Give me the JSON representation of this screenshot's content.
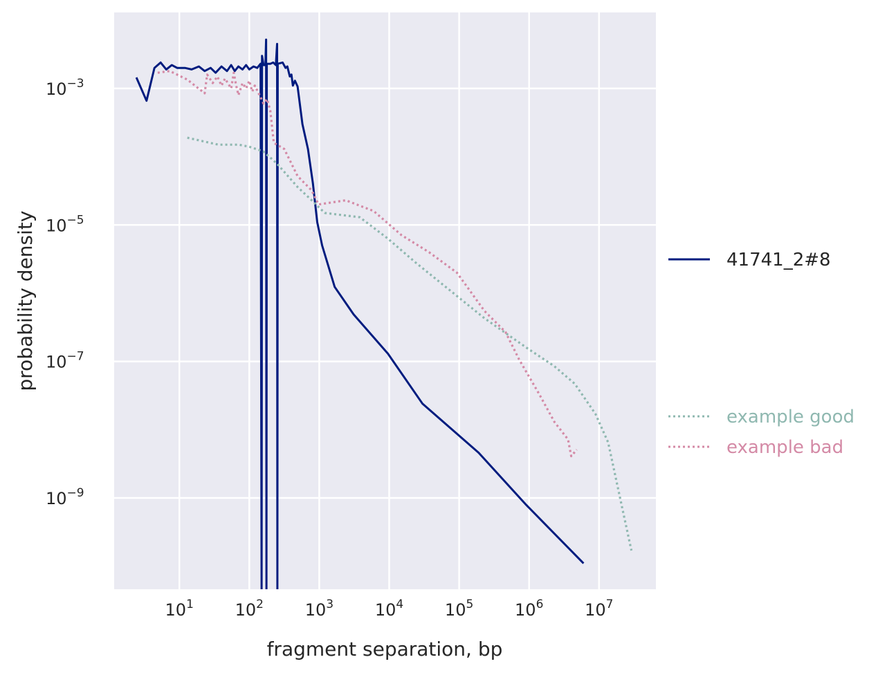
{
  "chart_data": {
    "type": "line",
    "xlabel": "fragment separation, bp",
    "ylabel": "probability density",
    "xscale": "log",
    "yscale": "log",
    "xlim": [
      1.17,
      65000000.0
    ],
    "ylim": [
      4.6e-11,
      0.013
    ],
    "grid": true,
    "background": "#eaeaf2",
    "legend_placement": "right-outside",
    "x_ticks": [
      {
        "value": 10,
        "base": "10",
        "exp": "1"
      },
      {
        "value": 100,
        "base": "10",
        "exp": "2"
      },
      {
        "value": 1000,
        "base": "10",
        "exp": "3"
      },
      {
        "value": 10000,
        "base": "10",
        "exp": "4"
      },
      {
        "value": 100000,
        "base": "10",
        "exp": "5"
      },
      {
        "value": 1000000,
        "base": "10",
        "exp": "6"
      },
      {
        "value": 10000000,
        "base": "10",
        "exp": "7"
      }
    ],
    "y_ticks": [
      {
        "value": 0.001,
        "base": "10",
        "exp": "−3"
      },
      {
        "value": 1e-05,
        "base": "10",
        "exp": "−5"
      },
      {
        "value": 1e-07,
        "base": "10",
        "exp": "−7"
      },
      {
        "value": 1e-09,
        "base": "10",
        "exp": "−9"
      }
    ],
    "series": [
      {
        "name": "41741_2#8",
        "color": "#001c7f",
        "style": "solid",
        "x": [
          2.43,
          3.4,
          4.4,
          5.4,
          6.5,
          7.8,
          9.3,
          12,
          15,
          19,
          23,
          28,
          33,
          40,
          48,
          55,
          62,
          70,
          80,
          90,
          100,
          115,
          130,
          145,
          150,
          152,
          160,
          170,
          174,
          176,
          178,
          200,
          220,
          240,
          250,
          252,
          255,
          300,
          330,
          350,
          380,
          400,
          420,
          450,
          490,
          575,
          690,
          810,
          935,
          1100,
          1660,
          3100,
          9600,
          30000,
          190000,
          910000,
          6000000
        ],
        "y": [
          0.00145,
          0.00066,
          0.002,
          0.0024,
          0.0019,
          0.0022,
          0.002,
          0.002,
          0.0019,
          0.0021,
          0.0018,
          0.002,
          0.0017,
          0.0021,
          0.0018,
          0.0022,
          0.0018,
          0.0021,
          0.0019,
          0.0022,
          0.0019,
          0.0021,
          0.002,
          0.0023,
          0,
          0.003,
          0.0022,
          0.0022,
          0.0052,
          0,
          0.0023,
          0.0023,
          0.0024,
          0.0022,
          0.0045,
          0,
          0.0023,
          0.0024,
          0.002,
          0.0021,
          0.0015,
          0.0016,
          0.0011,
          0.0013,
          0.00107,
          0.0003,
          0.00013,
          4.1e-05,
          1.1e-05,
          5e-06,
          1.24e-06,
          4.9e-07,
          1.3e-07,
          2.4e-08,
          4.6e-09,
          7.9e-10,
          1.1e-10
        ]
      },
      {
        "name": "example good",
        "color": "#8fb8b0",
        "style": "dotted",
        "x": [
          13,
          36,
          71,
          100,
          158,
          250,
          490,
          780,
          1200,
          3800,
          9600,
          24000,
          74000,
          230000,
          910000,
          2300000,
          4500000,
          8900000,
          13500000,
          20000000,
          29000000
        ],
        "y": [
          0.00019,
          0.00015,
          0.00015,
          0.00014,
          0.00012,
          7.9e-05,
          3.6e-05,
          2.3e-05,
          1.5e-05,
          1.3e-05,
          6.3e-06,
          2.8e-06,
          1.1e-06,
          4.3e-07,
          1.6e-07,
          8.5e-08,
          4.7e-08,
          1.7e-08,
          6.5e-09,
          1e-09,
          1.7e-10
        ]
      },
      {
        "name": "example bad",
        "color": "#d48aa6",
        "style": "dotted",
        "x": [
          4.9,
          7.3,
          13,
          23,
          25,
          30,
          35,
          40,
          45,
          55,
          60,
          65,
          70,
          80,
          90,
          100,
          110,
          120,
          140,
          160,
          180,
          200,
          224,
          316,
          490,
          780,
          980,
          2400,
          6000,
          15000,
          37000,
          93000,
          230000,
          460000,
          720000,
          1400000,
          2300000,
          3600000,
          4000000,
          4800000
        ],
        "y": [
          0.0017,
          0.0018,
          0.00135,
          0.00085,
          0.0016,
          0.0012,
          0.0015,
          0.0011,
          0.0014,
          0.001,
          0.0017,
          0.0011,
          0.0008,
          0.0012,
          0.001,
          0.0013,
          0.0009,
          0.0011,
          0.0008,
          0.0006,
          0.0007,
          0.00047,
          0.00016,
          0.00013,
          5.2e-05,
          3.2e-05,
          2e-05,
          2.3e-05,
          1.6e-05,
          7.1e-06,
          4e-06,
          2e-06,
          5.5e-07,
          2.7e-07,
          1.07e-07,
          3.3e-08,
          1.3e-08,
          7.2e-09,
          4.1e-09,
          5.1e-09
        ]
      }
    ]
  }
}
